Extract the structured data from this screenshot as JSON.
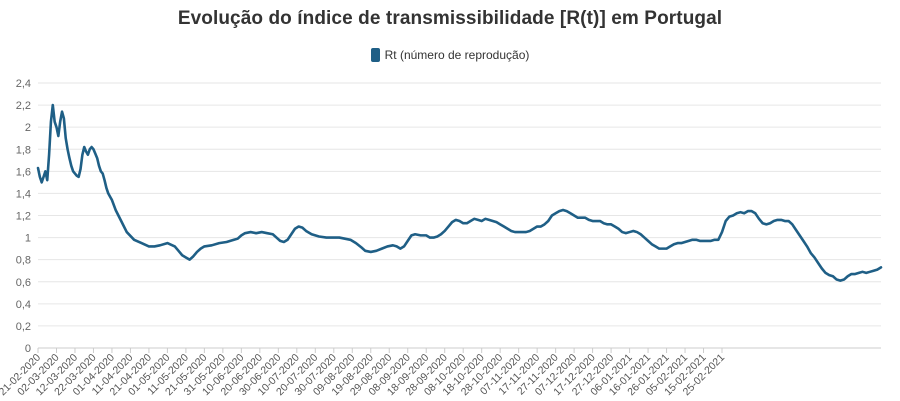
{
  "chart_data": {
    "type": "line",
    "title": "Evolução do índice de transmissibilidade [R(t)] em Portugal",
    "series": [
      {
        "name": "Rt (número de reprodução)",
        "color": "#1f5f86",
        "points": [
          [
            0,
            1.63
          ],
          [
            1,
            1.55
          ],
          [
            2,
            1.5
          ],
          [
            3,
            1.55
          ],
          [
            4,
            1.6
          ],
          [
            5,
            1.52
          ],
          [
            6,
            1.75
          ],
          [
            7,
            2.05
          ],
          [
            8,
            2.2
          ],
          [
            9,
            2.05
          ],
          [
            10,
            2.0
          ],
          [
            11,
            1.92
          ],
          [
            12,
            2.05
          ],
          [
            13,
            2.14
          ],
          [
            14,
            2.08
          ],
          [
            15,
            1.9
          ],
          [
            16,
            1.8
          ],
          [
            17,
            1.72
          ],
          [
            18,
            1.65
          ],
          [
            19,
            1.6
          ],
          [
            20,
            1.58
          ],
          [
            21,
            1.56
          ],
          [
            22,
            1.55
          ],
          [
            23,
            1.62
          ],
          [
            24,
            1.75
          ],
          [
            25,
            1.82
          ],
          [
            26,
            1.78
          ],
          [
            27,
            1.75
          ],
          [
            28,
            1.8
          ],
          [
            29,
            1.82
          ],
          [
            30,
            1.8
          ],
          [
            31,
            1.76
          ],
          [
            32,
            1.72
          ],
          [
            33,
            1.65
          ],
          [
            34,
            1.6
          ],
          [
            35,
            1.58
          ],
          [
            36,
            1.52
          ],
          [
            37,
            1.45
          ],
          [
            38,
            1.4
          ],
          [
            39,
            1.37
          ],
          [
            40,
            1.34
          ],
          [
            42,
            1.25
          ],
          [
            45,
            1.15
          ],
          [
            48,
            1.05
          ],
          [
            52,
            0.98
          ],
          [
            56,
            0.95
          ],
          [
            60,
            0.92
          ],
          [
            63,
            0.92
          ],
          [
            66,
            0.93
          ],
          [
            70,
            0.95
          ],
          [
            74,
            0.92
          ],
          [
            76,
            0.88
          ],
          [
            78,
            0.84
          ],
          [
            80,
            0.82
          ],
          [
            82,
            0.8
          ],
          [
            84,
            0.83
          ],
          [
            86,
            0.87
          ],
          [
            88,
            0.9
          ],
          [
            90,
            0.92
          ],
          [
            94,
            0.93
          ],
          [
            98,
            0.95
          ],
          [
            102,
            0.96
          ],
          [
            106,
            0.98
          ],
          [
            108,
            0.99
          ],
          [
            110,
            1.02
          ],
          [
            112,
            1.04
          ],
          [
            115,
            1.05
          ],
          [
            118,
            1.04
          ],
          [
            121,
            1.05
          ],
          [
            124,
            1.04
          ],
          [
            127,
            1.03
          ],
          [
            129,
            1.0
          ],
          [
            131,
            0.97
          ],
          [
            133,
            0.96
          ],
          [
            135,
            0.98
          ],
          [
            137,
            1.03
          ],
          [
            139,
            1.08
          ],
          [
            141,
            1.1
          ],
          [
            143,
            1.09
          ],
          [
            145,
            1.06
          ],
          [
            148,
            1.03
          ],
          [
            152,
            1.01
          ],
          [
            156,
            1.0
          ],
          [
            160,
            1.0
          ],
          [
            163,
            1.0
          ],
          [
            166,
            0.99
          ],
          [
            169,
            0.98
          ],
          [
            172,
            0.95
          ],
          [
            175,
            0.91
          ],
          [
            177,
            0.88
          ],
          [
            180,
            0.87
          ],
          [
            183,
            0.88
          ],
          [
            186,
            0.9
          ],
          [
            189,
            0.92
          ],
          [
            192,
            0.93
          ],
          [
            194,
            0.92
          ],
          [
            196,
            0.9
          ],
          [
            198,
            0.92
          ],
          [
            200,
            0.97
          ],
          [
            202,
            1.02
          ],
          [
            204,
            1.03
          ],
          [
            207,
            1.02
          ],
          [
            210,
            1.02
          ],
          [
            212,
            1.0
          ],
          [
            214,
            1.0
          ],
          [
            216,
            1.01
          ],
          [
            218,
            1.03
          ],
          [
            220,
            1.06
          ],
          [
            222,
            1.1
          ],
          [
            224,
            1.14
          ],
          [
            226,
            1.16
          ],
          [
            228,
            1.15
          ],
          [
            230,
            1.13
          ],
          [
            232,
            1.13
          ],
          [
            234,
            1.15
          ],
          [
            236,
            1.17
          ],
          [
            238,
            1.16
          ],
          [
            240,
            1.15
          ],
          [
            242,
            1.17
          ],
          [
            244,
            1.16
          ],
          [
            246,
            1.15
          ],
          [
            248,
            1.14
          ],
          [
            250,
            1.12
          ],
          [
            252,
            1.1
          ],
          [
            254,
            1.08
          ],
          [
            256,
            1.06
          ],
          [
            258,
            1.05
          ],
          [
            261,
            1.05
          ],
          [
            264,
            1.05
          ],
          [
            266,
            1.06
          ],
          [
            268,
            1.08
          ],
          [
            270,
            1.1
          ],
          [
            272,
            1.1
          ],
          [
            274,
            1.12
          ],
          [
            276,
            1.15
          ],
          [
            278,
            1.2
          ],
          [
            280,
            1.22
          ],
          [
            282,
            1.24
          ],
          [
            284,
            1.25
          ],
          [
            286,
            1.24
          ],
          [
            288,
            1.22
          ],
          [
            290,
            1.2
          ],
          [
            292,
            1.18
          ],
          [
            294,
            1.18
          ],
          [
            296,
            1.18
          ],
          [
            298,
            1.16
          ],
          [
            300,
            1.15
          ],
          [
            302,
            1.15
          ],
          [
            304,
            1.15
          ],
          [
            306,
            1.13
          ],
          [
            308,
            1.12
          ],
          [
            310,
            1.12
          ],
          [
            312,
            1.1
          ],
          [
            314,
            1.08
          ],
          [
            316,
            1.05
          ],
          [
            318,
            1.04
          ],
          [
            320,
            1.05
          ],
          [
            322,
            1.06
          ],
          [
            324,
            1.05
          ],
          [
            326,
            1.03
          ],
          [
            328,
            1.0
          ],
          [
            330,
            0.97
          ],
          [
            332,
            0.94
          ],
          [
            334,
            0.92
          ],
          [
            336,
            0.9
          ],
          [
            338,
            0.9
          ],
          [
            340,
            0.9
          ],
          [
            342,
            0.92
          ],
          [
            344,
            0.94
          ],
          [
            346,
            0.95
          ],
          [
            348,
            0.95
          ],
          [
            350,
            0.96
          ],
          [
            352,
            0.97
          ],
          [
            354,
            0.98
          ],
          [
            356,
            0.98
          ],
          [
            358,
            0.97
          ],
          [
            360,
            0.97
          ],
          [
            362,
            0.97
          ],
          [
            364,
            0.97
          ],
          [
            366,
            0.98
          ],
          [
            368,
            0.98
          ],
          [
            370,
            1.05
          ],
          [
            372,
            1.15
          ],
          [
            374,
            1.19
          ],
          [
            376,
            1.2
          ],
          [
            378,
            1.22
          ],
          [
            380,
            1.23
          ],
          [
            382,
            1.22
          ],
          [
            384,
            1.24
          ],
          [
            386,
            1.24
          ],
          [
            388,
            1.22
          ],
          [
            390,
            1.17
          ],
          [
            392,
            1.13
          ],
          [
            394,
            1.12
          ],
          [
            396,
            1.13
          ],
          [
            398,
            1.15
          ],
          [
            400,
            1.16
          ],
          [
            402,
            1.16
          ],
          [
            404,
            1.15
          ],
          [
            406,
            1.15
          ],
          [
            408,
            1.12
          ],
          [
            410,
            1.07
          ],
          [
            412,
            1.02
          ],
          [
            414,
            0.97
          ],
          [
            416,
            0.92
          ],
          [
            418,
            0.86
          ],
          [
            420,
            0.82
          ],
          [
            422,
            0.77
          ],
          [
            424,
            0.72
          ],
          [
            426,
            0.68
          ],
          [
            428,
            0.66
          ],
          [
            430,
            0.65
          ],
          [
            432,
            0.62
          ],
          [
            434,
            0.61
          ],
          [
            436,
            0.62
          ],
          [
            438,
            0.65
          ],
          [
            440,
            0.67
          ],
          [
            442,
            0.67
          ],
          [
            444,
            0.68
          ],
          [
            446,
            0.69
          ],
          [
            448,
            0.68
          ],
          [
            450,
            0.69
          ],
          [
            452,
            0.7
          ],
          [
            454,
            0.71
          ],
          [
            456,
            0.73
          ]
        ]
      }
    ],
    "x_tick_labels": [
      "21-02-2020",
      "02-03-2020",
      "12-03-2020",
      "22-03-2020",
      "01-04-2020",
      "11-04-2020",
      "21-04-2020",
      "01-05-2020",
      "11-05-2020",
      "21-05-2020",
      "31-05-2020",
      "10-06-2020",
      "20-06-2020",
      "30-06-2020",
      "10-07-2020",
      "20-07-2020",
      "30-07-2020",
      "09-08-2020",
      "19-08-2020",
      "29-08-2020",
      "08-09-2020",
      "18-09-2020",
      "28-09-2020",
      "08-10-2020",
      "18-10-2020",
      "28-10-2020",
      "07-11-2020",
      "17-11-2020",
      "27-11-2020",
      "07-12-2020",
      "17-12-2020",
      "27-12-2020",
      "06-01-2021",
      "16-01-2021",
      "26-01-2021",
      "05-02-2021",
      "15-02-2021",
      "25-02-2021"
    ],
    "x_tick_step": 10,
    "x_range": [
      0,
      456
    ],
    "y_ticks": [
      "0",
      "0,2",
      "0,4",
      "0,6",
      "0,8",
      "1",
      "1,2",
      "1,4",
      "1,6",
      "1,8",
      "2",
      "2,2",
      "2,4"
    ],
    "ylim": [
      0,
      2.4
    ],
    "y_step": 0.2,
    "grid": true,
    "legend_position": "top-center"
  }
}
